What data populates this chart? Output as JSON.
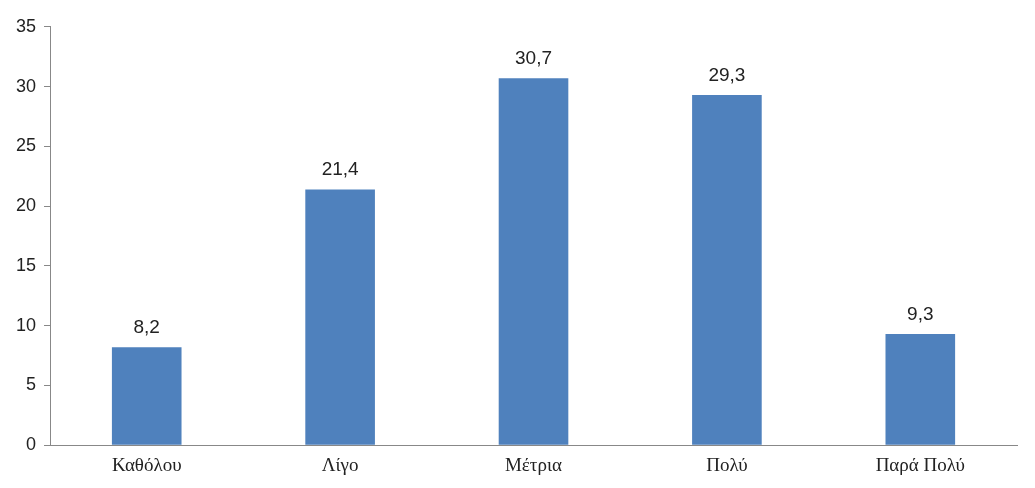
{
  "chart_data": {
    "type": "bar",
    "categories": [
      "Καθόλου",
      "Λίγο",
      "Μέτρια",
      "Πολύ",
      "Παρά Πολύ"
    ],
    "values": [
      8.2,
      21.4,
      30.7,
      29.3,
      9.3
    ],
    "value_labels": [
      "8,2",
      "21,4",
      "30,7",
      "29,3",
      "9,3"
    ],
    "color": "#4f81bd",
    "ylim": [
      0,
      35
    ],
    "yticks": [
      0,
      5,
      10,
      15,
      20,
      25,
      30,
      35
    ],
    "grid": false,
    "legend": false
  }
}
